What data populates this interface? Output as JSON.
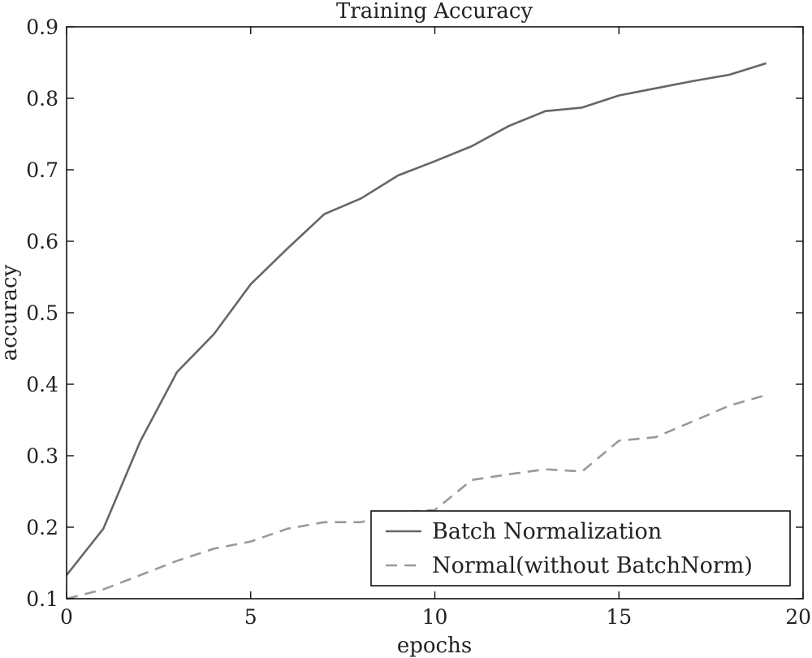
{
  "chart_data": {
    "type": "line",
    "title": "Training Accuracy",
    "xlabel": "epochs",
    "ylabel": "accuracy",
    "xlim": [
      0,
      20
    ],
    "ylim": [
      0.1,
      0.9
    ],
    "x_ticks": [
      0,
      5,
      10,
      15,
      20
    ],
    "x_tick_labels": [
      "0",
      "5",
      "10",
      "15",
      "20"
    ],
    "y_ticks": [
      0.1,
      0.2,
      0.3,
      0.4,
      0.5,
      0.6,
      0.7,
      0.8,
      0.9
    ],
    "y_tick_labels": [
      "0.1",
      "0.2",
      "0.3",
      "0.4",
      "0.5",
      "0.6",
      "0.7",
      "0.8",
      "0.9"
    ],
    "grid": false,
    "legend_position": "lower-right",
    "x": [
      0,
      1,
      2,
      3,
      4,
      5,
      6,
      7,
      8,
      9,
      10,
      11,
      12,
      13,
      14,
      15,
      16,
      17,
      18,
      19
    ],
    "series": [
      {
        "name": "Batch Normalization",
        "style": "solid",
        "color": "#666666",
        "values": [
          0.133,
          0.198,
          0.32,
          0.417,
          0.47,
          0.54,
          0.59,
          0.638,
          0.66,
          0.692,
          0.712,
          0.733,
          0.761,
          0.782,
          0.787,
          0.804,
          0.814,
          0.824,
          0.833,
          0.849
        ]
      },
      {
        "name": "Normal(without BatchNorm)",
        "style": "dashed",
        "color": "#999999",
        "values": [
          0.1,
          0.113,
          0.133,
          0.153,
          0.17,
          0.18,
          0.198,
          0.207,
          0.207,
          0.221,
          0.224,
          0.266,
          0.274,
          0.281,
          0.278,
          0.321,
          0.326,
          0.348,
          0.37,
          0.385
        ]
      }
    ]
  }
}
